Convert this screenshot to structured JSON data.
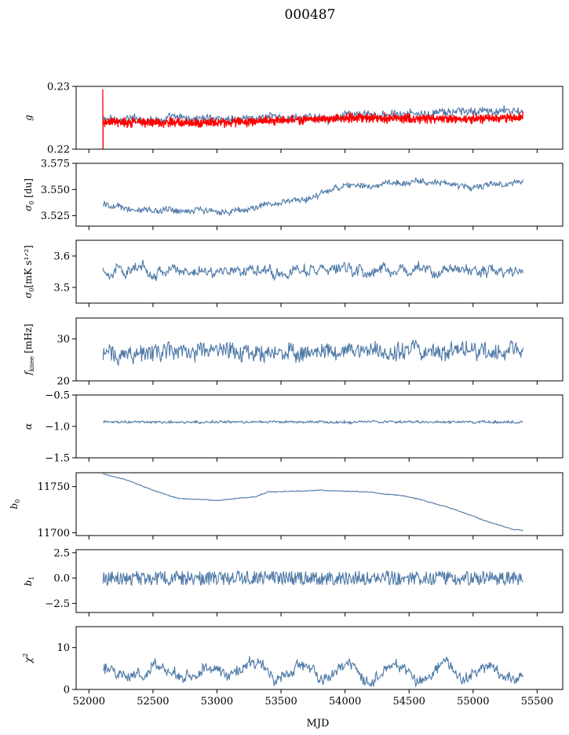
{
  "figure": {
    "title": "000487",
    "xlabel": "MJD"
  },
  "chart_data": [
    {
      "type": "line",
      "id": "g",
      "ylabel": "g",
      "ylabel_sub": "",
      "ylim": [
        0.22,
        0.23
      ],
      "yticks": [
        0.22,
        0.23
      ],
      "yticklabels": [
        "0.22",
        "0.23"
      ],
      "xlim": [
        51900,
        55700
      ],
      "xrange": [
        52110,
        55390
      ],
      "series": [
        {
          "name": "g",
          "color": "#4e79a7",
          "mean": 0.2249,
          "noise": 0.0006,
          "wiggle": 0.0004,
          "trend": [
            [
              52110,
              0.2247
            ],
            [
              53700,
              0.225
            ],
            [
              55390,
              0.2262
            ]
          ],
          "spike": [
            52110,
            0.2283
          ]
        },
        {
          "name": "g model",
          "color": "#ff0000",
          "mean": 0.2244,
          "noise": 0.00025,
          "band": 0.0007,
          "trend": [
            [
              52110,
              0.2243
            ],
            [
              53000,
              0.2242
            ],
            [
              54000,
              0.225
            ],
            [
              55100,
              0.2248
            ],
            [
              55390,
              0.2252
            ]
          ],
          "spike": [
            52110,
            0.2295
          ]
        }
      ]
    },
    {
      "type": "line",
      "id": "sigma0_du",
      "ylabel": "σ",
      "ylabel_sub": "0",
      "ylabel_suffix": " [du]",
      "ylim": [
        3.515,
        3.575
      ],
      "yticks": [
        3.525,
        3.55,
        3.575
      ],
      "yticklabels": [
        "3.525",
        "3.550",
        "3.575"
      ],
      "xlim": [
        51900,
        55700
      ],
      "xrange": [
        52110,
        55390
      ],
      "series": [
        {
          "name": "sigma0 du",
          "color": "#4e79a7",
          "noise": 0.0025,
          "wiggle": 0.002,
          "trend": [
            [
              52110,
              3.536
            ],
            [
              52400,
              3.53
            ],
            [
              52800,
              3.531
            ],
            [
              53100,
              3.528
            ],
            [
              53400,
              3.536
            ],
            [
              53700,
              3.541
            ],
            [
              53900,
              3.551
            ],
            [
              54300,
              3.555
            ],
            [
              54600,
              3.558
            ],
            [
              55000,
              3.552
            ],
            [
              55390,
              3.557
            ]
          ]
        }
      ]
    },
    {
      "type": "line",
      "id": "sigma0_mk",
      "ylabel": "σ",
      "ylabel_sub": "0",
      "ylabel_suffix": "[mK s^{1/2}]",
      "ylim": [
        3.45,
        3.65
      ],
      "yticks": [
        3.5,
        3.6
      ],
      "yticklabels": [
        "3.5",
        "3.6"
      ],
      "xlim": [
        51900,
        55700
      ],
      "xrange": [
        52110,
        55390
      ],
      "series": [
        {
          "name": "sigma0 mK",
          "color": "#4e79a7",
          "mean": 3.555,
          "noise": 0.012,
          "wiggle": 0.02,
          "trend": [
            [
              52110,
              3.555
            ],
            [
              55390,
              3.553
            ]
          ]
        }
      ]
    },
    {
      "type": "line",
      "id": "fknee",
      "ylabel": "f",
      "ylabel_sub": "knee",
      "ylabel_suffix": " [mHz]",
      "ylim": [
        20,
        35
      ],
      "yticks": [
        20,
        30
      ],
      "yticklabels": [
        "20",
        "30"
      ],
      "xlim": [
        51900,
        55700
      ],
      "xrange": [
        52110,
        55390
      ],
      "series": [
        {
          "name": "fknee",
          "color": "#4e79a7",
          "mean": 26.5,
          "noise": 1.9,
          "wiggle": 1.2,
          "trend": [
            [
              52110,
              26.5
            ],
            [
              55390,
              27.5
            ]
          ]
        }
      ]
    },
    {
      "type": "line",
      "id": "alpha",
      "ylabel": "α",
      "ylabel_sub": "",
      "ylim": [
        -1.5,
        -0.5
      ],
      "yticks": [
        -1.5,
        -1.0,
        -0.5
      ],
      "yticklabels": [
        "−1.5",
        "−1.0",
        "−0.5"
      ],
      "xlim": [
        51900,
        55700
      ],
      "xrange": [
        52110,
        55390
      ],
      "series": [
        {
          "name": "alpha",
          "color": "#4e79a7",
          "mean": -0.93,
          "noise": 0.018,
          "wiggle": 0.01,
          "trend": [
            [
              52110,
              -0.93
            ],
            [
              55390,
              -0.93
            ]
          ]
        }
      ]
    },
    {
      "type": "line",
      "id": "b0",
      "ylabel": "b",
      "ylabel_sub": "0",
      "ylim": [
        11697,
        11765
      ],
      "yticks": [
        11700,
        11750
      ],
      "yticklabels": [
        "11700",
        "11750"
      ],
      "xlim": [
        51900,
        55700
      ],
      "xrange": [
        52110,
        55390
      ],
      "series": [
        {
          "name": "b0",
          "color": "#4e79a7",
          "noise": 0.4,
          "wiggle": 0.3,
          "trend": [
            [
              52110,
              11764
            ],
            [
              52300,
              11757
            ],
            [
              52500,
              11746
            ],
            [
              52700,
              11737
            ],
            [
              53000,
              11735
            ],
            [
              53300,
              11739
            ],
            [
              53400,
              11744
            ],
            [
              53800,
              11746
            ],
            [
              54200,
              11744
            ],
            [
              54500,
              11739
            ],
            [
              54800,
              11728
            ],
            [
              55100,
              11713
            ],
            [
              55300,
              11704
            ],
            [
              55390,
              11702
            ]
          ]
        }
      ]
    },
    {
      "type": "line",
      "id": "b1",
      "ylabel": "b",
      "ylabel_sub": "1",
      "ylim": [
        -3.4,
        2.8
      ],
      "yticks": [
        -2.5,
        0.0,
        2.5
      ],
      "yticklabels": [
        "−2.5",
        "0.0",
        "2.5"
      ],
      "xlim": [
        51900,
        55700
      ],
      "xrange": [
        52110,
        55390
      ],
      "series": [
        {
          "name": "b1",
          "color": "#4e79a7",
          "mean": 0.0,
          "noise": 0.7,
          "wiggle": 0.0,
          "trend": [
            [
              52110,
              0
            ],
            [
              55390,
              0
            ]
          ]
        }
      ]
    },
    {
      "type": "line",
      "id": "chi2",
      "ylabel": "χ",
      "ylabel_sub": "",
      "ylabel_sup": "2",
      "ylim": [
        0,
        15
      ],
      "yticks": [
        0,
        10
      ],
      "yticklabels": [
        "0",
        "10"
      ],
      "xlim": [
        51900,
        55700
      ],
      "xrange": [
        52110,
        55390
      ],
      "xticks": [
        52000,
        52500,
        53000,
        53500,
        54000,
        54500,
        55000,
        55500
      ],
      "xticklabels": [
        "52000",
        "52500",
        "53000",
        "53500",
        "54000",
        "54500",
        "55000",
        "55500"
      ],
      "series": [
        {
          "name": "chi2",
          "color": "#4e79a7",
          "mean": 4.2,
          "noise": 1.0,
          "wiggle": 1.6,
          "period": 365,
          "trend": [
            [
              52110,
              4.2
            ],
            [
              55390,
              4.4
            ]
          ]
        }
      ]
    }
  ]
}
